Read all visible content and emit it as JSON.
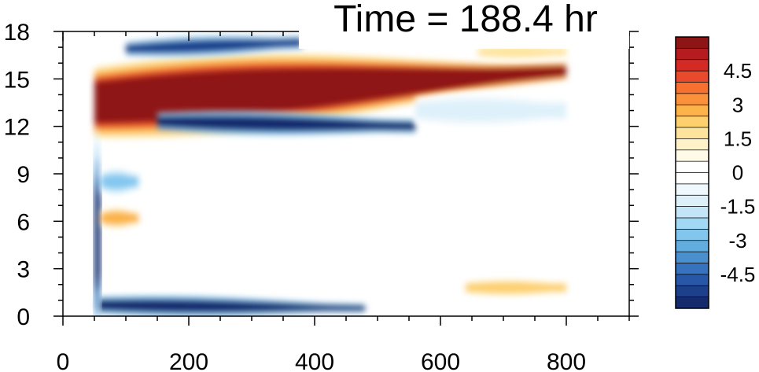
{
  "chart_data": {
    "type": "heatmap",
    "title": "Time = 188.4 hr",
    "xlim": [
      0,
      900
    ],
    "ylim": [
      0,
      18
    ],
    "x_ticks": [
      0,
      200,
      400,
      600,
      800
    ],
    "y_ticks": [
      0,
      3,
      6,
      9,
      12,
      15,
      18
    ],
    "colorbar": {
      "min": -6,
      "max": 6,
      "step": 0.5,
      "labels": [
        "4.5",
        "3",
        "1.5",
        "0",
        "-1.5",
        "-3",
        "-4.5"
      ],
      "label_values": [
        4.5,
        3,
        1.5,
        0,
        -1.5,
        -3,
        -4.5
      ],
      "colors": [
        "#8e1515",
        "#b41c1f",
        "#d42a26",
        "#ea4a2c",
        "#f6702f",
        "#f9923a",
        "#fbb34a",
        "#fdcf6d",
        "#fee39c",
        "#fff2c8",
        "#fffbe8",
        "#ffffff",
        "#ffffff",
        "#eff8fc",
        "#dcf0fa",
        "#c2e6f7",
        "#a3d8f4",
        "#82c6ee",
        "#62addf",
        "#4a90cf",
        "#3672bd",
        "#2757a6",
        "#1e3f8a",
        "#162b6c"
      ]
    },
    "features": [
      {
        "x": [
          50,
          800
        ],
        "y_center": [
          13.5,
          15.5
        ],
        "half_width": [
          2.4,
          0.6
        ],
        "value": 6.5,
        "note": "strong positive band"
      },
      {
        "x": [
          150,
          560
        ],
        "y_center": [
          12.3,
          12.0
        ],
        "half_width": [
          0.6,
          0.5
        ],
        "value": -6,
        "note": "negative band below"
      },
      {
        "x": [
          100,
          380
        ],
        "y_center": [
          16.9,
          17.3
        ],
        "half_width": [
          0.5,
          0.5
        ],
        "value": -5,
        "note": "negative band above"
      },
      {
        "x": [
          55,
          480
        ],
        "y_center": [
          0.7,
          0.5
        ],
        "half_width": [
          0.6,
          0.3
        ],
        "value": -6,
        "note": "negative near-surface band"
      },
      {
        "x": [
          50,
          60
        ],
        "y_center": [
          5,
          5
        ],
        "half_width": [
          5,
          5
        ],
        "value": -5.5,
        "note": "negative vertical streak"
      },
      {
        "x": [
          560,
          800
        ],
        "y_center": [
          13,
          13
        ],
        "half_width": [
          0.9,
          0.9
        ],
        "value": -1,
        "note": "weak negative region"
      },
      {
        "x": [
          60,
          120
        ],
        "y_center": [
          6.2,
          6.2
        ],
        "half_width": [
          0.5,
          0.5
        ],
        "value": 3,
        "note": "positive patch"
      },
      {
        "x": [
          60,
          120
        ],
        "y_center": [
          8.5,
          8.5
        ],
        "half_width": [
          0.6,
          0.6
        ],
        "value": -2.5,
        "note": "negative patch"
      },
      {
        "x": [
          640,
          800
        ],
        "y_center": [
          1.8,
          1.8
        ],
        "half_width": [
          0.4,
          0.4
        ],
        "value": 2.5,
        "note": "positive patch near surface"
      },
      {
        "x": [
          660,
          800
        ],
        "y_center": [
          16.7,
          16.7
        ],
        "half_width": [
          0.4,
          0.4
        ],
        "value": 2,
        "note": "positive patch upper right"
      }
    ]
  }
}
